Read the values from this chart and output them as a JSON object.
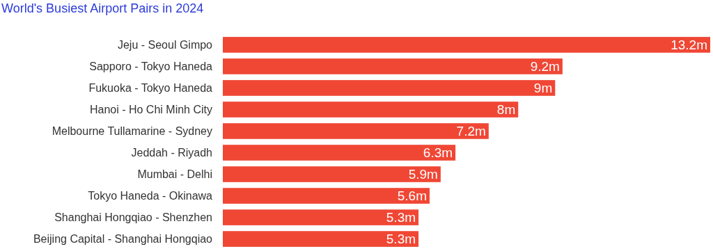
{
  "chart_data": {
    "type": "bar",
    "orientation": "horizontal",
    "title": "World's Busiest Airport Pairs in 2024",
    "categories": [
      "Jeju - Seoul Gimpo",
      "Sapporo - Tokyo Haneda",
      "Fukuoka - Tokyo Haneda",
      "Hanoi - Ho Chi Minh City",
      "Melbourne Tullamarine - Sydney",
      "Jeddah - Riyadh",
      "Mumbai - Delhi",
      "Tokyo Haneda - Okinawa",
      "Shanghai Hongqiao - Shenzhen",
      "Beijing Capital - Shanghai Hongqiao"
    ],
    "values": [
      13.2,
      9.2,
      9,
      8,
      7.2,
      6.3,
      5.9,
      5.6,
      5.3,
      5.3
    ],
    "value_labels": [
      "13.2m",
      "9.2m",
      "9m",
      "8m",
      "7.2m",
      "6.3m",
      "5.9m",
      "5.6m",
      "5.3m",
      "5.3m"
    ],
    "color": "#f04735"
  }
}
